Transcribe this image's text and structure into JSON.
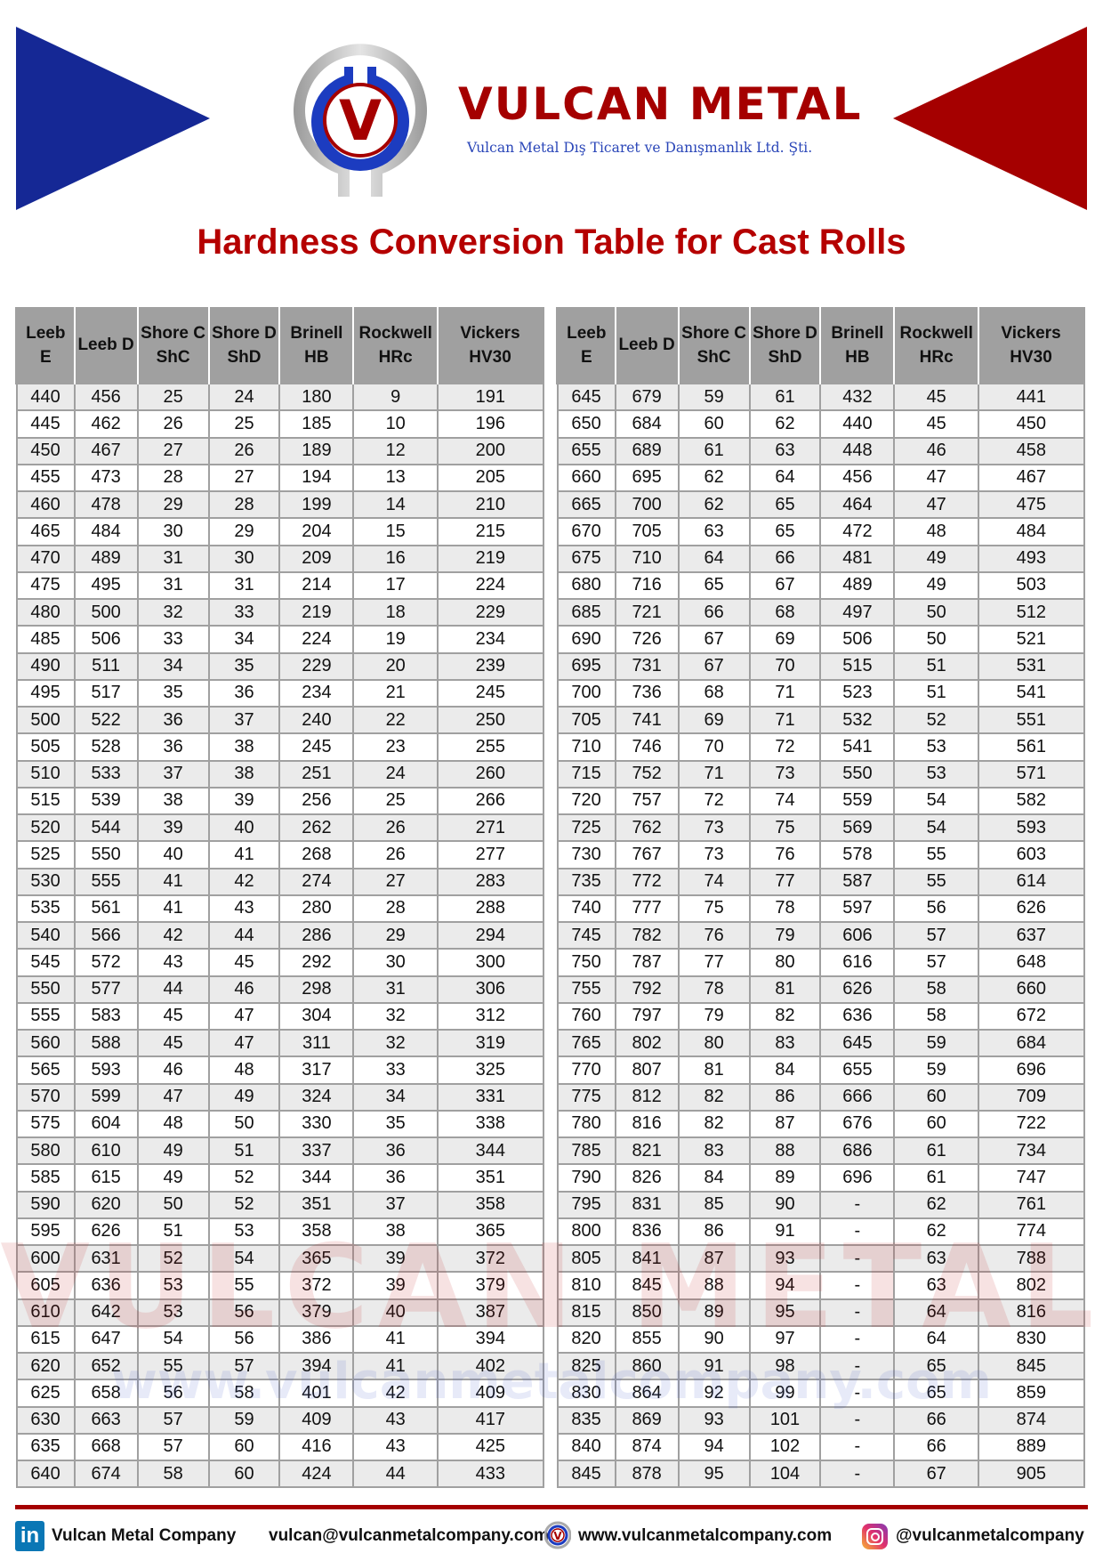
{
  "header": {
    "brand_name": "VULCAN METAL",
    "brand_subtitle": "Vulcan Metal Dış Ticaret ve Danışmanlık Ltd. Şti.",
    "logo_letter": "V",
    "colors": {
      "blue": "#152895",
      "red": "#a50000",
      "title_red": "#b50000",
      "header_gray": "#a0a0a0",
      "row_alt": "#ebebeb"
    }
  },
  "title": "Hardness Conversion Table for Cast Rolls",
  "watermark": {
    "text": "VULCAN METAL",
    "url": "www.vulcanmetalcompany.com"
  },
  "table": {
    "columns": [
      {
        "line1": "Leeb E",
        "line2": ""
      },
      {
        "line1": "Leeb D",
        "line2": ""
      },
      {
        "line1": "Shore C",
        "line2": "ShC"
      },
      {
        "line1": "Shore D",
        "line2": "ShD"
      },
      {
        "line1": "Brinell",
        "line2": "HB"
      },
      {
        "line1": "Rockwell",
        "line2": "HRc"
      },
      {
        "line1": "Vickers",
        "line2": "HV30"
      }
    ],
    "left_rows": [
      [
        "440",
        "456",
        "25",
        "24",
        "180",
        "9",
        "191"
      ],
      [
        "445",
        "462",
        "26",
        "25",
        "185",
        "10",
        "196"
      ],
      [
        "450",
        "467",
        "27",
        "26",
        "189",
        "12",
        "200"
      ],
      [
        "455",
        "473",
        "28",
        "27",
        "194",
        "13",
        "205"
      ],
      [
        "460",
        "478",
        "29",
        "28",
        "199",
        "14",
        "210"
      ],
      [
        "465",
        "484",
        "30",
        "29",
        "204",
        "15",
        "215"
      ],
      [
        "470",
        "489",
        "31",
        "30",
        "209",
        "16",
        "219"
      ],
      [
        "475",
        "495",
        "31",
        "31",
        "214",
        "17",
        "224"
      ],
      [
        "480",
        "500",
        "32",
        "33",
        "219",
        "18",
        "229"
      ],
      [
        "485",
        "506",
        "33",
        "34",
        "224",
        "19",
        "234"
      ],
      [
        "490",
        "511",
        "34",
        "35",
        "229",
        "20",
        "239"
      ],
      [
        "495",
        "517",
        "35",
        "36",
        "234",
        "21",
        "245"
      ],
      [
        "500",
        "522",
        "36",
        "37",
        "240",
        "22",
        "250"
      ],
      [
        "505",
        "528",
        "36",
        "38",
        "245",
        "23",
        "255"
      ],
      [
        "510",
        "533",
        "37",
        "38",
        "251",
        "24",
        "260"
      ],
      [
        "515",
        "539",
        "38",
        "39",
        "256",
        "25",
        "266"
      ],
      [
        "520",
        "544",
        "39",
        "40",
        "262",
        "26",
        "271"
      ],
      [
        "525",
        "550",
        "40",
        "41",
        "268",
        "26",
        "277"
      ],
      [
        "530",
        "555",
        "41",
        "42",
        "274",
        "27",
        "283"
      ],
      [
        "535",
        "561",
        "41",
        "43",
        "280",
        "28",
        "288"
      ],
      [
        "540",
        "566",
        "42",
        "44",
        "286",
        "29",
        "294"
      ],
      [
        "545",
        "572",
        "43",
        "45",
        "292",
        "30",
        "300"
      ],
      [
        "550",
        "577",
        "44",
        "46",
        "298",
        "31",
        "306"
      ],
      [
        "555",
        "583",
        "45",
        "47",
        "304",
        "32",
        "312"
      ],
      [
        "560",
        "588",
        "45",
        "47",
        "311",
        "32",
        "319"
      ],
      [
        "565",
        "593",
        "46",
        "48",
        "317",
        "33",
        "325"
      ],
      [
        "570",
        "599",
        "47",
        "49",
        "324",
        "34",
        "331"
      ],
      [
        "575",
        "604",
        "48",
        "50",
        "330",
        "35",
        "338"
      ],
      [
        "580",
        "610",
        "49",
        "51",
        "337",
        "36",
        "344"
      ],
      [
        "585",
        "615",
        "49",
        "52",
        "344",
        "36",
        "351"
      ],
      [
        "590",
        "620",
        "50",
        "52",
        "351",
        "37",
        "358"
      ],
      [
        "595",
        "626",
        "51",
        "53",
        "358",
        "38",
        "365"
      ],
      [
        "600",
        "631",
        "52",
        "54",
        "365",
        "39",
        "372"
      ],
      [
        "605",
        "636",
        "53",
        "55",
        "372",
        "39",
        "379"
      ],
      [
        "610",
        "642",
        "53",
        "56",
        "379",
        "40",
        "387"
      ],
      [
        "615",
        "647",
        "54",
        "56",
        "386",
        "41",
        "394"
      ],
      [
        "620",
        "652",
        "55",
        "57",
        "394",
        "41",
        "402"
      ],
      [
        "625",
        "658",
        "56",
        "58",
        "401",
        "42",
        "409"
      ],
      [
        "630",
        "663",
        "57",
        "59",
        "409",
        "43",
        "417"
      ],
      [
        "635",
        "668",
        "57",
        "60",
        "416",
        "43",
        "425"
      ],
      [
        "640",
        "674",
        "58",
        "60",
        "424",
        "44",
        "433"
      ]
    ],
    "right_rows": [
      [
        "645",
        "679",
        "59",
        "61",
        "432",
        "45",
        "441"
      ],
      [
        "650",
        "684",
        "60",
        "62",
        "440",
        "45",
        "450"
      ],
      [
        "655",
        "689",
        "61",
        "63",
        "448",
        "46",
        "458"
      ],
      [
        "660",
        "695",
        "62",
        "64",
        "456",
        "47",
        "467"
      ],
      [
        "665",
        "700",
        "62",
        "65",
        "464",
        "47",
        "475"
      ],
      [
        "670",
        "705",
        "63",
        "65",
        "472",
        "48",
        "484"
      ],
      [
        "675",
        "710",
        "64",
        "66",
        "481",
        "49",
        "493"
      ],
      [
        "680",
        "716",
        "65",
        "67",
        "489",
        "49",
        "503"
      ],
      [
        "685",
        "721",
        "66",
        "68",
        "497",
        "50",
        "512"
      ],
      [
        "690",
        "726",
        "67",
        "69",
        "506",
        "50",
        "521"
      ],
      [
        "695",
        "731",
        "67",
        "70",
        "515",
        "51",
        "531"
      ],
      [
        "700",
        "736",
        "68",
        "71",
        "523",
        "51",
        "541"
      ],
      [
        "705",
        "741",
        "69",
        "71",
        "532",
        "52",
        "551"
      ],
      [
        "710",
        "746",
        "70",
        "72",
        "541",
        "53",
        "561"
      ],
      [
        "715",
        "752",
        "71",
        "73",
        "550",
        "53",
        "571"
      ],
      [
        "720",
        "757",
        "72",
        "74",
        "559",
        "54",
        "582"
      ],
      [
        "725",
        "762",
        "73",
        "75",
        "569",
        "54",
        "593"
      ],
      [
        "730",
        "767",
        "73",
        "76",
        "578",
        "55",
        "603"
      ],
      [
        "735",
        "772",
        "74",
        "77",
        "587",
        "55",
        "614"
      ],
      [
        "740",
        "777",
        "75",
        "78",
        "597",
        "56",
        "626"
      ],
      [
        "745",
        "782",
        "76",
        "79",
        "606",
        "57",
        "637"
      ],
      [
        "750",
        "787",
        "77",
        "80",
        "616",
        "57",
        "648"
      ],
      [
        "755",
        "792",
        "78",
        "81",
        "626",
        "58",
        "660"
      ],
      [
        "760",
        "797",
        "79",
        "82",
        "636",
        "58",
        "672"
      ],
      [
        "765",
        "802",
        "80",
        "83",
        "645",
        "59",
        "684"
      ],
      [
        "770",
        "807",
        "81",
        "84",
        "655",
        "59",
        "696"
      ],
      [
        "775",
        "812",
        "82",
        "86",
        "666",
        "60",
        "709"
      ],
      [
        "780",
        "816",
        "82",
        "87",
        "676",
        "60",
        "722"
      ],
      [
        "785",
        "821",
        "83",
        "88",
        "686",
        "61",
        "734"
      ],
      [
        "790",
        "826",
        "84",
        "89",
        "696",
        "61",
        "747"
      ],
      [
        "795",
        "831",
        "85",
        "90",
        "-",
        "62",
        "761"
      ],
      [
        "800",
        "836",
        "86",
        "91",
        "-",
        "62",
        "774"
      ],
      [
        "805",
        "841",
        "87",
        "93",
        "-",
        "63",
        "788"
      ],
      [
        "810",
        "845",
        "88",
        "94",
        "-",
        "63",
        "802"
      ],
      [
        "815",
        "850",
        "89",
        "95",
        "-",
        "64",
        "816"
      ],
      [
        "820",
        "855",
        "90",
        "97",
        "-",
        "64",
        "830"
      ],
      [
        "825",
        "860",
        "91",
        "98",
        "-",
        "65",
        "845"
      ],
      [
        "830",
        "864",
        "92",
        "99",
        "-",
        "65",
        "859"
      ],
      [
        "835",
        "869",
        "93",
        "101",
        "-",
        "66",
        "874"
      ],
      [
        "840",
        "874",
        "94",
        "102",
        "-",
        "66",
        "889"
      ],
      [
        "845",
        "878",
        "95",
        "104",
        "-",
        "67",
        "905"
      ]
    ]
  },
  "footer": {
    "linkedin_icon": "linkedin-icon",
    "linkedin_glyph": "in",
    "linkedin_label": "Vulcan Metal Company",
    "email": "vulcan@vulcanmetalcompany.com",
    "website_icon": "vulcan-logo-icon",
    "website": "www.vulcanmetalcompany.com",
    "instagram_icon": "instagram-icon",
    "instagram": "@vulcanmetalcompany"
  }
}
